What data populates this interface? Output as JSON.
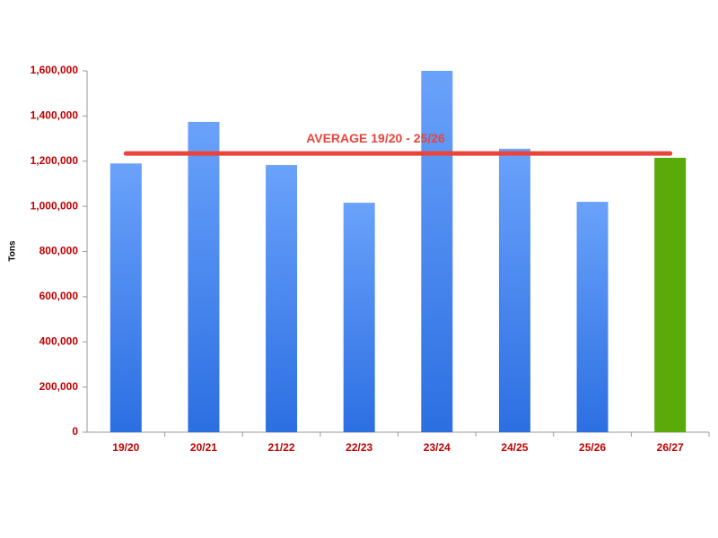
{
  "chart_data": {
    "type": "bar",
    "y_label": "Tons",
    "categories": [
      "19/20",
      "20/21",
      "21/22",
      "22/23",
      "23/24",
      "24/25",
      "25/26",
      "26/27"
    ],
    "values": [
      1190000,
      1374000,
      1183000,
      1016000,
      1600000,
      1255000,
      1020000,
      1215000
    ],
    "colors": [
      "#3f86f5",
      "#3f86f5",
      "#3f86f5",
      "#3f86f5",
      "#3f86f5",
      "#3f86f5",
      "#3f86f5",
      "#5aaa0a"
    ],
    "reference_line": {
      "label": "AVERAGE 19/20 - 25/26",
      "value": 1234000,
      "color": "#e8453c"
    },
    "ylim": [
      0,
      1600000
    ],
    "yticks": [
      0,
      {
        "value": 200000,
        "label": "200,000"
      },
      {
        "value": 400000,
        "label": "400,000"
      },
      {
        "value": 600000,
        "label": "600,000"
      },
      {
        "value": 800000,
        "label": "800,000"
      },
      {
        "value": 1000000,
        "label": "1,000,000"
      },
      {
        "value": 1200000,
        "label": "1,200,000"
      },
      {
        "value": 1400000,
        "label": "1,400,000"
      },
      {
        "value": 1600000,
        "label": "1,600,000"
      }
    ],
    "grid": false
  }
}
